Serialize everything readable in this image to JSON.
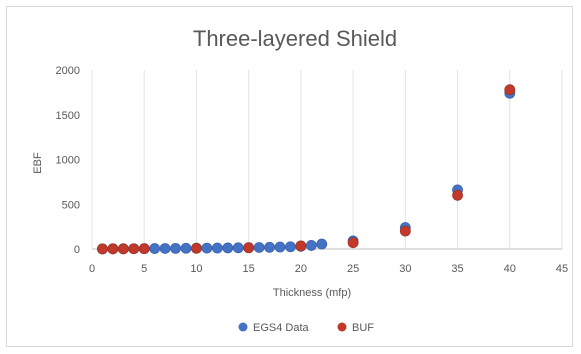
{
  "chart_data": {
    "type": "scatter",
    "title": "Three-layered Shield",
    "xlabel": "Thickness (mfp)",
    "ylabel": "EBF",
    "xlim": [
      0,
      45
    ],
    "ylim": [
      0,
      2000
    ],
    "x_ticks": [
      0,
      5,
      10,
      15,
      20,
      25,
      30,
      35,
      40,
      45
    ],
    "y_ticks": [
      0,
      500,
      1000,
      1500,
      2000
    ],
    "grid": "vertical",
    "legend_position": "bottom",
    "series": [
      {
        "name": "EGS4 Data",
        "color": "#4472c4",
        "points": [
          [
            1,
            1
          ],
          [
            2,
            2
          ],
          [
            3,
            2
          ],
          [
            4,
            3
          ],
          [
            5,
            4
          ],
          [
            6,
            5
          ],
          [
            7,
            6
          ],
          [
            8,
            7
          ],
          [
            9,
            8
          ],
          [
            10,
            9
          ],
          [
            11,
            10
          ],
          [
            12,
            11
          ],
          [
            13,
            12
          ],
          [
            14,
            13
          ],
          [
            15,
            15
          ],
          [
            16,
            17
          ],
          [
            17,
            19
          ],
          [
            18,
            22
          ],
          [
            19,
            25
          ],
          [
            20,
            30
          ],
          [
            21,
            40
          ],
          [
            22,
            55
          ],
          [
            25,
            90
          ],
          [
            30,
            240
          ],
          [
            35,
            660
          ],
          [
            40,
            1740
          ]
        ]
      },
      {
        "name": "BUF",
        "color": "#c0392b",
        "points": [
          [
            1,
            1
          ],
          [
            2,
            2
          ],
          [
            3,
            2
          ],
          [
            4,
            3
          ],
          [
            5,
            4
          ],
          [
            10,
            8
          ],
          [
            15,
            14
          ],
          [
            20,
            35
          ],
          [
            25,
            70
          ],
          [
            30,
            200
          ],
          [
            35,
            600
          ],
          [
            40,
            1780
          ]
        ]
      }
    ]
  }
}
